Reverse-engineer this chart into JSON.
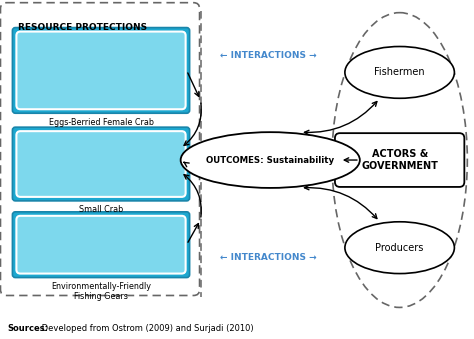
{
  "bg_color": "#ffffff",
  "source_text_bold": "Sources:",
  "source_text_rest": " Developed from Ostrom (2009) and Surjadi (2010)",
  "resource_box_label": "RESOURCE PROTECTIONS",
  "resource_items": [
    "Eggs-Berried Female Crab",
    "Small Crab",
    "Environmentally-Friendly\nFishing Gears"
  ],
  "outcomes_label": "OUTCOMES: Sustainability",
  "actors_label": "ACTORS &\nGOVERNMENT",
  "fishermen_label": "Fishermen",
  "producers_label": "Producers",
  "interactions_top": "← INTERACTIONS →",
  "interactions_bottom": "← INTERACTIONS →",
  "interactions_color": "#4488cc",
  "arrow_color": "#000000",
  "dashed_color": "#666666",
  "img_color": "#1da8d0",
  "img_inner_color": "#7dd8ed"
}
